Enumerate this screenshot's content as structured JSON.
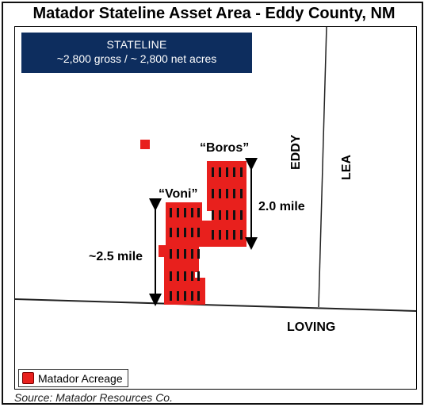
{
  "title": "Matador Stateline Asset Area - Eddy County, NM",
  "info_box": {
    "name": "STATELINE",
    "acres": "~2,800 gross / ~ 2,800 net acres"
  },
  "labels": {
    "boros": "“Boros”",
    "voni": "“Voni”",
    "boros_length": "2.0 mile",
    "voni_length": "~2.5 mile",
    "county_west": "EDDY",
    "county_east": "LEA",
    "county_south": "LOVING"
  },
  "legend": {
    "label": "Matador Acreage",
    "color": "#e8201d"
  },
  "source": "Source: Matador Resources Co."
}
